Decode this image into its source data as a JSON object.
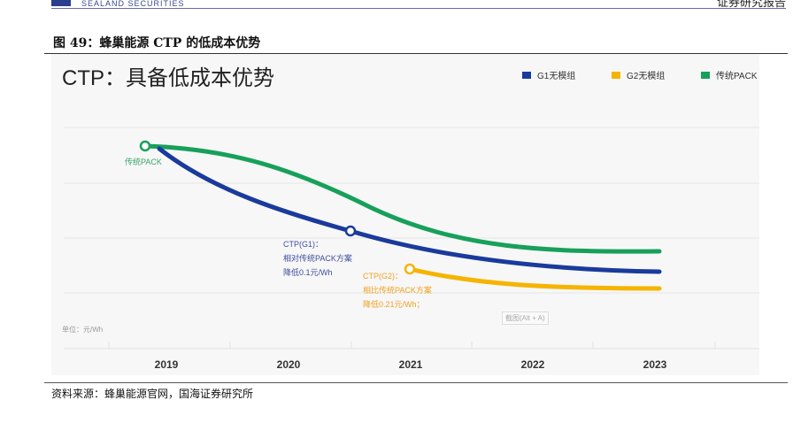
{
  "header": {
    "logo_text": "SEALAND SECURITIES",
    "right_text": "证券研究报告"
  },
  "figure": {
    "title": "图 49：蜂巢能源 CTP 的低成本优势",
    "source": "资料来源：蜂巢能源官网，国海证券研究所"
  },
  "colors": {
    "g1": "#1a3a9c",
    "g2": "#f5b400",
    "pack": "#17a05a"
  },
  "chart_data": {
    "type": "line",
    "title": "CTP：具备低成本优势",
    "unit_label": "单位：元/Wh",
    "categories": [
      "2019",
      "2020",
      "2021",
      "2022",
      "2023"
    ],
    "grid": true,
    "legend_position": "top-right",
    "series": [
      {
        "name": "G1无模组",
        "color": "#1a3a9c"
      },
      {
        "name": "G2无模组",
        "color": "#f5b400"
      },
      {
        "name": "传统PACK",
        "color": "#17a05a"
      }
    ],
    "annotations": {
      "pack": "传统PACK",
      "g1": [
        "CTP(G1)：",
        "相对传统PACK方案",
        "降低0.1元/Wh"
      ],
      "g2": [
        "CTP(G2)：",
        "相比传统PACK方案",
        "降低0.21元/Wh；"
      ]
    },
    "overlay_hint": "截图(Alt + A)"
  }
}
